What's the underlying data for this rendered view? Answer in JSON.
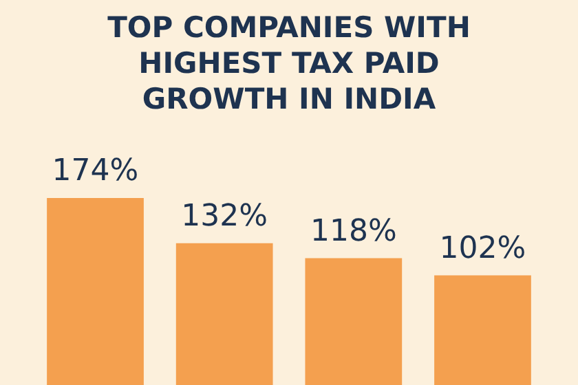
{
  "chart_data": {
    "type": "bar",
    "title": "TOP COMPANIES WITH HIGHEST TAX PAID GROWTH IN INDIA",
    "categories": [
      null,
      null,
      null,
      null
    ],
    "values": [
      174,
      132,
      118,
      102
    ],
    "value_labels": [
      "174%",
      "132%",
      "118%",
      "102%"
    ],
    "color": "#f4a04f"
  }
}
